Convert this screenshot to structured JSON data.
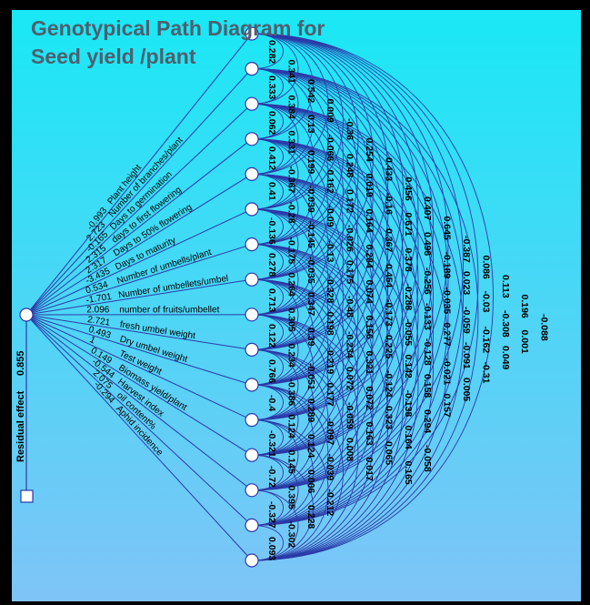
{
  "title": {
    "line1": "Genotypical Path Diagram for",
    "line2": "Seed yield /plant"
  },
  "residual": {
    "label": "Residual effect",
    "value": "0.855"
  },
  "colors": {
    "bg_top": "#19e8f5",
    "bg_bottom": "#7fc4f7",
    "line": "#2b3aa8",
    "frame": "#000000",
    "node_fill": "#ffffff"
  },
  "direct_effects": [
    {
      "value": "-0.993",
      "trait": "Plant height"
    },
    {
      "value": "2.723",
      "trait": "Number of branches/plant"
    },
    {
      "value": "-0.165",
      "trait": "Days to germination"
    },
    {
      "value": "2.315",
      "trait": "days to first flowering"
    },
    {
      "value": "2.317",
      "trait": "Days to 50% flowering"
    },
    {
      "value": "-3.435",
      "trait": "Days to maturity"
    },
    {
      "value": "0.534",
      "trait": "Number of umbells/plant"
    },
    {
      "value": "-1.701",
      "trait": "Number of umbellets/umbel"
    },
    {
      "value": "2.096",
      "trait": "number of fruits/umbellet"
    },
    {
      "value": "2.721",
      "trait": "fresh umbel weight"
    },
    {
      "value": "0.493",
      "trait": "Dry umbel weight"
    },
    {
      "value": "1",
      "trait": "Test weight"
    },
    {
      "value": "0.149",
      "trait": "Biomass yield/plant"
    },
    {
      "value": "-0.544",
      "trait": "Harvest index"
    },
    {
      "value": "2.075",
      "trait": "oil content%"
    },
    {
      "value": "-0.294",
      "trait": "Aphid incidence"
    }
  ],
  "correlation_columns": [
    [
      "0.282",
      "0.333",
      "0.062",
      "0.412",
      "0.41",
      "-0.136",
      "0.278",
      "0.713",
      "0.122",
      "0.766",
      "-0.4",
      "-0.321",
      "-0.72",
      "-0.327",
      "0.093"
    ],
    [
      "0.341",
      "0.384",
      "0.331",
      "-0.367",
      "-0.28",
      "-0.175",
      "0.264",
      "0.305",
      "0.234",
      "-0.386",
      "0.124",
      "0.145",
      "0.395",
      "-0.302"
    ],
    [
      "0.542",
      "0.13",
      "0.199",
      "-0.039",
      "-0.145",
      "-0.035",
      "0.347",
      "0.39",
      "-0.051",
      "0.289",
      "0.124",
      "0.006",
      "0.228"
    ],
    [
      "0.009",
      "-0.066",
      "0.162",
      "-0.09",
      "-0.13",
      "-0.328",
      "0.198",
      "-0.219",
      "0.177",
      "-0.097",
      "-0.039",
      "-0.212"
    ],
    [
      "-0.36",
      "0.248",
      "0.172",
      "-0.026",
      "0.175",
      "-0.48",
      "-0.234",
      "0.072",
      "-0.059",
      "0.008"
    ],
    [
      "0.254",
      "0.019",
      "0.164",
      "0.284",
      "0.074",
      "0.156",
      "0.321",
      "0.072",
      "0.163",
      "0.017"
    ],
    [
      "0.433",
      "-0.16",
      "0.367",
      "0.454",
      "-0.173",
      "0.225",
      "-0.124",
      "0.323",
      "0.065"
    ],
    [
      "0.456",
      "0.671",
      "0.378",
      "-0.288",
      "-0.055",
      "0.142",
      "-0.138",
      "0.164",
      "0.165"
    ],
    [
      "0.407",
      "0.498",
      "-0.256",
      "-0.133",
      "-0.128",
      "0.158",
      "0.294",
      "-0.058"
    ],
    [
      "0.645",
      "-0.189",
      "-0.035",
      "0.277",
      "-0.021",
      "0.157"
    ],
    [
      "-0.387",
      "0.023",
      "-0.059",
      "-0.091",
      "0.005"
    ],
    [
      "0.086",
      "-0.03",
      "-0.162",
      "-0.31"
    ],
    [
      "0.113",
      "-0.308",
      "0.049"
    ],
    [
      "0.196",
      "0.001"
    ],
    [
      "-0.088"
    ]
  ]
}
